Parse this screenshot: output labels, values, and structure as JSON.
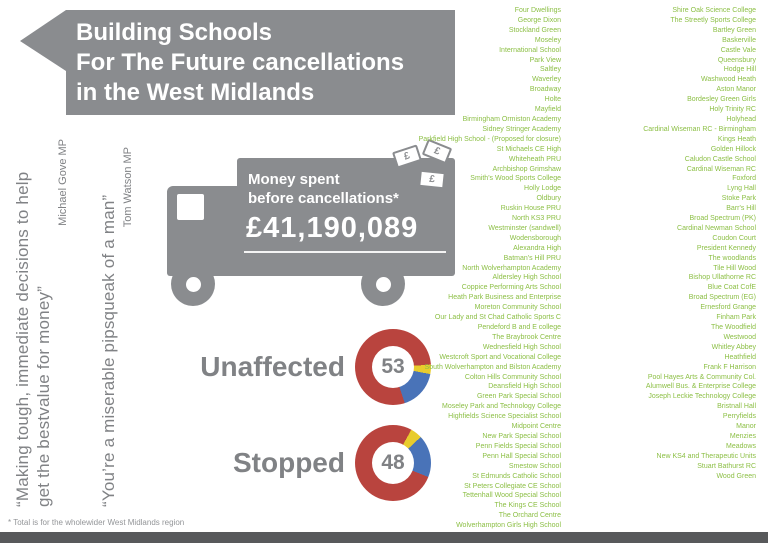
{
  "page": {
    "title": "Building Schools\nFor The Future cancellations\nin the West Midlands",
    "footnote": "* Total is for the wholewider West Midlands region"
  },
  "quotes": [
    {
      "text": "“Making tough, immediate decisions to help\nget the bestvalue for money”",
      "author": "Michael Gove MP"
    },
    {
      "text": "“You’re a miserable pipsqueak of a man”",
      "author": "Tom Watson MP"
    }
  ],
  "truck": {
    "caption": "Money spent\nbefore cancellations*",
    "amount": "£41,190,089",
    "currency_symbol": "£"
  },
  "chart_data": [
    {
      "type": "pie",
      "style": "donut",
      "title": "Unaffected",
      "center_value": 53,
      "segments": [
        {
          "name": "red-top",
          "color": "#b9443e",
          "percent": 24
        },
        {
          "name": "yellow",
          "color": "#e8cc2d",
          "percent": 4
        },
        {
          "name": "blue",
          "color": "#4973b8",
          "percent": 17
        },
        {
          "name": "red-main",
          "color": "#b9443e",
          "percent": 55
        }
      ]
    },
    {
      "type": "pie",
      "style": "donut",
      "title": "Stopped",
      "center_value": 48,
      "segments": [
        {
          "name": "red-top",
          "color": "#b9443e",
          "percent": 8
        },
        {
          "name": "yellow",
          "color": "#e8cc2d",
          "percent": 5
        },
        {
          "name": "blue",
          "color": "#4973b8",
          "percent": 18
        },
        {
          "name": "red-main",
          "color": "#b9443e",
          "percent": 69
        }
      ]
    }
  ],
  "lists": {
    "column1": [
      "Four Dwellings",
      "George Dixon",
      "Stockland Green",
      "Moseley",
      "International School",
      "Park View",
      "Saltley",
      "Waverley",
      "Broadway",
      "Holte",
      "Mayfield",
      "Birmingham Ormiston Academy",
      "Sidney Stringer Academy",
      "Parkfield High School - (Proposed for closure)",
      "St Michaels CE High",
      "Whiteheath PRU",
      "Archbishop Grimshaw",
      "Smith's Wood Sports College",
      "Holly Lodge",
      "Oldbury",
      "Ruskin House PRU",
      "North KS3 PRU",
      "Westminster (sandwell)",
      "Wodensborough",
      "Alexandra High",
      "Batman's Hill PRU",
      "North Wolverhampton Academy",
      "Aldersley High School",
      "Coppice Performing Arts School",
      "Heath Park Business and Enterprise",
      "Moreton Community School",
      "Our Lady and St Chad Catholic Sports C",
      "Pendeford B and E college",
      "The Braybrook Centre",
      "Wednesfield High School",
      "Westcroft Sport and Vocational College",
      "South Wolverhampton and Bilston Academy",
      "Colton Hills Community School",
      "Deansfield High School",
      "Green Park Special School",
      "Moseley Park and Technology College",
      "Highfields Science Specialist School",
      "Midpoint Centre",
      "New Park Special School",
      "Penn Fields Special School",
      "Penn Hall Special School",
      "Smestow School",
      "St Edmunds Catholic School",
      "St Peters Collegiate CE School",
      "Tettenhall Wood Special School",
      "The Kings CE School",
      "The Orchard Centre",
      "Wolverhampton Girls High School"
    ],
    "column2": [
      "Shire Oak Science College",
      "The Streetly Sports College",
      "Bartley Green",
      "Baskerville",
      "Castle Vale",
      "Queensbury",
      "Hodge Hill",
      "Washwood Heath",
      "Aston Manor",
      "Bordesley Green Girls",
      "Holy Trinity RC",
      "Holyhead",
      "Cardinal Wiseman RC - Birmingham",
      "Kings Heath",
      "Golden Hillock",
      "Caludon Castle School",
      "Cardinal Wiseman RC",
      "Foxford",
      "Lyng Hall",
      "Stoke Park",
      "Barr's Hill",
      "Broad Spectrum (PK)",
      "Cardinal Newman School",
      "Coudon Court",
      "President Kennedy",
      "The woodlands",
      "Tile Hill Wood",
      "Bishop Ullathorne RC",
      "Blue Coat CofE",
      "Broad Spectrum (EG)",
      "Ernesford Grange",
      "Finham Park",
      "The Woodfield",
      "Westwood",
      "Whitley Abbey",
      "Heathfield",
      "Frank F Harrison",
      "Pool Hayes Arts & Community Col.",
      "Alumwell Bus. & Enterprise College",
      "Joseph Leckie Technology College",
      "Bristnall Hall",
      "Perryfields",
      "Manor",
      "Menzies",
      "Meadows",
      "New KS4 and Therapeutic Units",
      "Stuart Bathurst RC",
      "Wood Green"
    ]
  },
  "colors": {
    "banner_gray": "#8a8c8f",
    "text_gray": "#808285",
    "school_green": "#8cbf45",
    "donut_red": "#b9443e",
    "donut_blue": "#4973b8",
    "donut_yellow": "#e8cc2d",
    "bottom_bar": "#58595b"
  }
}
